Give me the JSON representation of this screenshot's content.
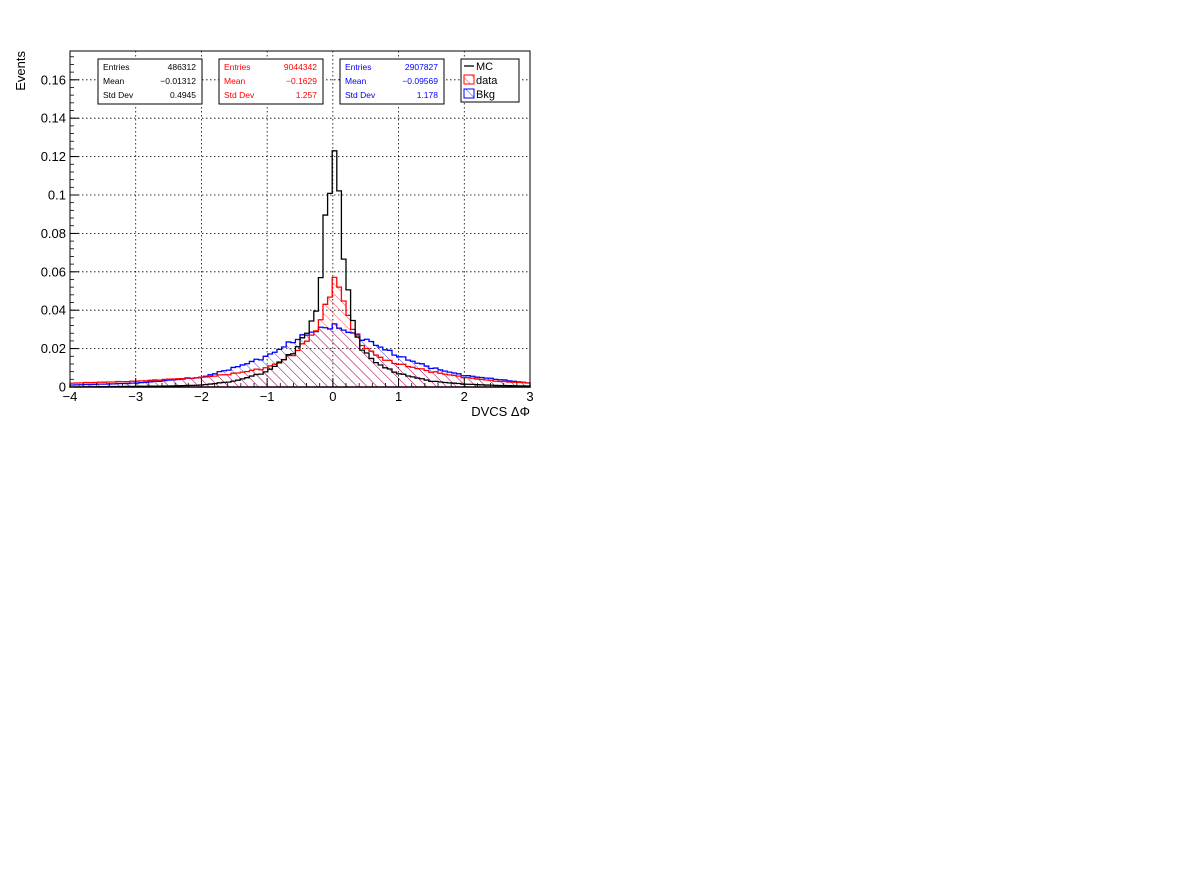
{
  "chart_data": {
    "type": "step-histogram",
    "title": "",
    "xlabel": "DVCS   ΔΦ",
    "ylabel": "Events",
    "xlim": [
      -4,
      3
    ],
    "ylim": [
      0,
      0.175
    ],
    "grid": true,
    "x_ticks": [
      -4,
      -3,
      -2,
      -1,
      0,
      1,
      2,
      3
    ],
    "x_tick_labels": [
      "−4",
      "−3",
      "−2",
      "−1",
      "0",
      "1",
      "2",
      "3"
    ],
    "y_ticks": [
      0,
      0.02,
      0.04,
      0.06,
      0.08,
      0.1,
      0.12,
      0.14,
      0.16
    ],
    "y_tick_labels": [
      "0",
      "0.02",
      "0.04",
      "0.06",
      "0.08",
      "0.1",
      "0.12",
      "0.14",
      "0.16"
    ],
    "bin_width": 0.07,
    "bins": 100,
    "series": [
      {
        "name": "MC",
        "color": "#000000",
        "fill": "none",
        "shape": "peaked",
        "peak_x": 0.05,
        "peak_y": 0.125,
        "points": [
          [
            -4,
            0.0
          ],
          [
            -2.5,
            0.0005
          ],
          [
            -2,
            0.001
          ],
          [
            -1.5,
            0.003
          ],
          [
            -1,
            0.008
          ],
          [
            -0.6,
            0.018
          ],
          [
            -0.4,
            0.028
          ],
          [
            -0.2,
            0.045
          ],
          [
            -0.15,
            0.079
          ],
          [
            -0.08,
            0.1
          ],
          [
            0,
            0.112
          ],
          [
            0.05,
            0.125
          ],
          [
            0.1,
            0.1
          ],
          [
            0.15,
            0.07
          ],
          [
            0.2,
            0.06
          ],
          [
            0.3,
            0.035
          ],
          [
            0.4,
            0.022
          ],
          [
            0.6,
            0.014
          ],
          [
            0.8,
            0.01
          ],
          [
            1,
            0.007
          ],
          [
            1.5,
            0.003
          ],
          [
            2,
            0.0015
          ],
          [
            2.5,
            0.0008
          ],
          [
            3,
            0.0005
          ]
        ]
      },
      {
        "name": "data",
        "color": "#ff0000",
        "fill": "hatch",
        "shape": "peaked",
        "peak_x": 0.05,
        "peak_y": 0.058,
        "points": [
          [
            -4,
            0.002
          ],
          [
            -3,
            0.003
          ],
          [
            -2,
            0.005
          ],
          [
            -1.5,
            0.007
          ],
          [
            -1,
            0.01
          ],
          [
            -0.6,
            0.017
          ],
          [
            -0.4,
            0.024
          ],
          [
            -0.2,
            0.032
          ],
          [
            -0.1,
            0.045
          ],
          [
            0,
            0.052
          ],
          [
            0.05,
            0.058
          ],
          [
            0.12,
            0.049
          ],
          [
            0.2,
            0.042
          ],
          [
            0.3,
            0.03
          ],
          [
            0.5,
            0.02
          ],
          [
            0.8,
            0.014
          ],
          [
            1,
            0.012
          ],
          [
            1.5,
            0.008
          ],
          [
            2,
            0.005
          ],
          [
            2.5,
            0.003
          ],
          [
            3,
            0.002
          ]
        ]
      },
      {
        "name": "Bkg",
        "color": "#0000ff",
        "fill": "hatch",
        "shape": "smooth",
        "peak_x": 0.0,
        "peak_y": 0.032,
        "points": [
          [
            -4,
            0.001
          ],
          [
            -3,
            0.002
          ],
          [
            -2,
            0.005
          ],
          [
            -1.5,
            0.01
          ],
          [
            -1,
            0.016
          ],
          [
            -0.6,
            0.024
          ],
          [
            -0.3,
            0.029
          ],
          [
            0,
            0.032
          ],
          [
            0.3,
            0.028
          ],
          [
            0.6,
            0.023
          ],
          [
            1,
            0.016
          ],
          [
            1.5,
            0.01
          ],
          [
            2,
            0.006
          ],
          [
            2.5,
            0.004
          ],
          [
            3,
            0.002
          ]
        ]
      }
    ],
    "stats_boxes": [
      {
        "name": "MC",
        "color": "#000000",
        "rows": [
          {
            "label": "Entries",
            "value": "486312"
          },
          {
            "label": "Mean",
            "value": "−0.01312"
          },
          {
            "label": "Std Dev",
            "value": "0.4945"
          }
        ]
      },
      {
        "name": "data",
        "color": "#ff0000",
        "rows": [
          {
            "label": "Entries",
            "value": "9044342"
          },
          {
            "label": "Mean",
            "value": "−0.1629"
          },
          {
            "label": "Std Dev",
            "value": "1.257"
          }
        ]
      },
      {
        "name": "Bkg",
        "color": "#0000ff",
        "rows": [
          {
            "label": "Entries",
            "value": "2907827"
          },
          {
            "label": "Mean",
            "value": "−0.09569"
          },
          {
            "label": "Std Dev",
            "value": "1.178"
          }
        ]
      }
    ],
    "legend": {
      "placement": "top-right",
      "entries": [
        {
          "label": "MC",
          "color": "#000000",
          "style": "line"
        },
        {
          "label": "data",
          "color": "#ff0000",
          "style": "hatch-box"
        },
        {
          "label": "Bkg",
          "color": "#0000ff",
          "style": "hatch-box"
        }
      ]
    }
  }
}
